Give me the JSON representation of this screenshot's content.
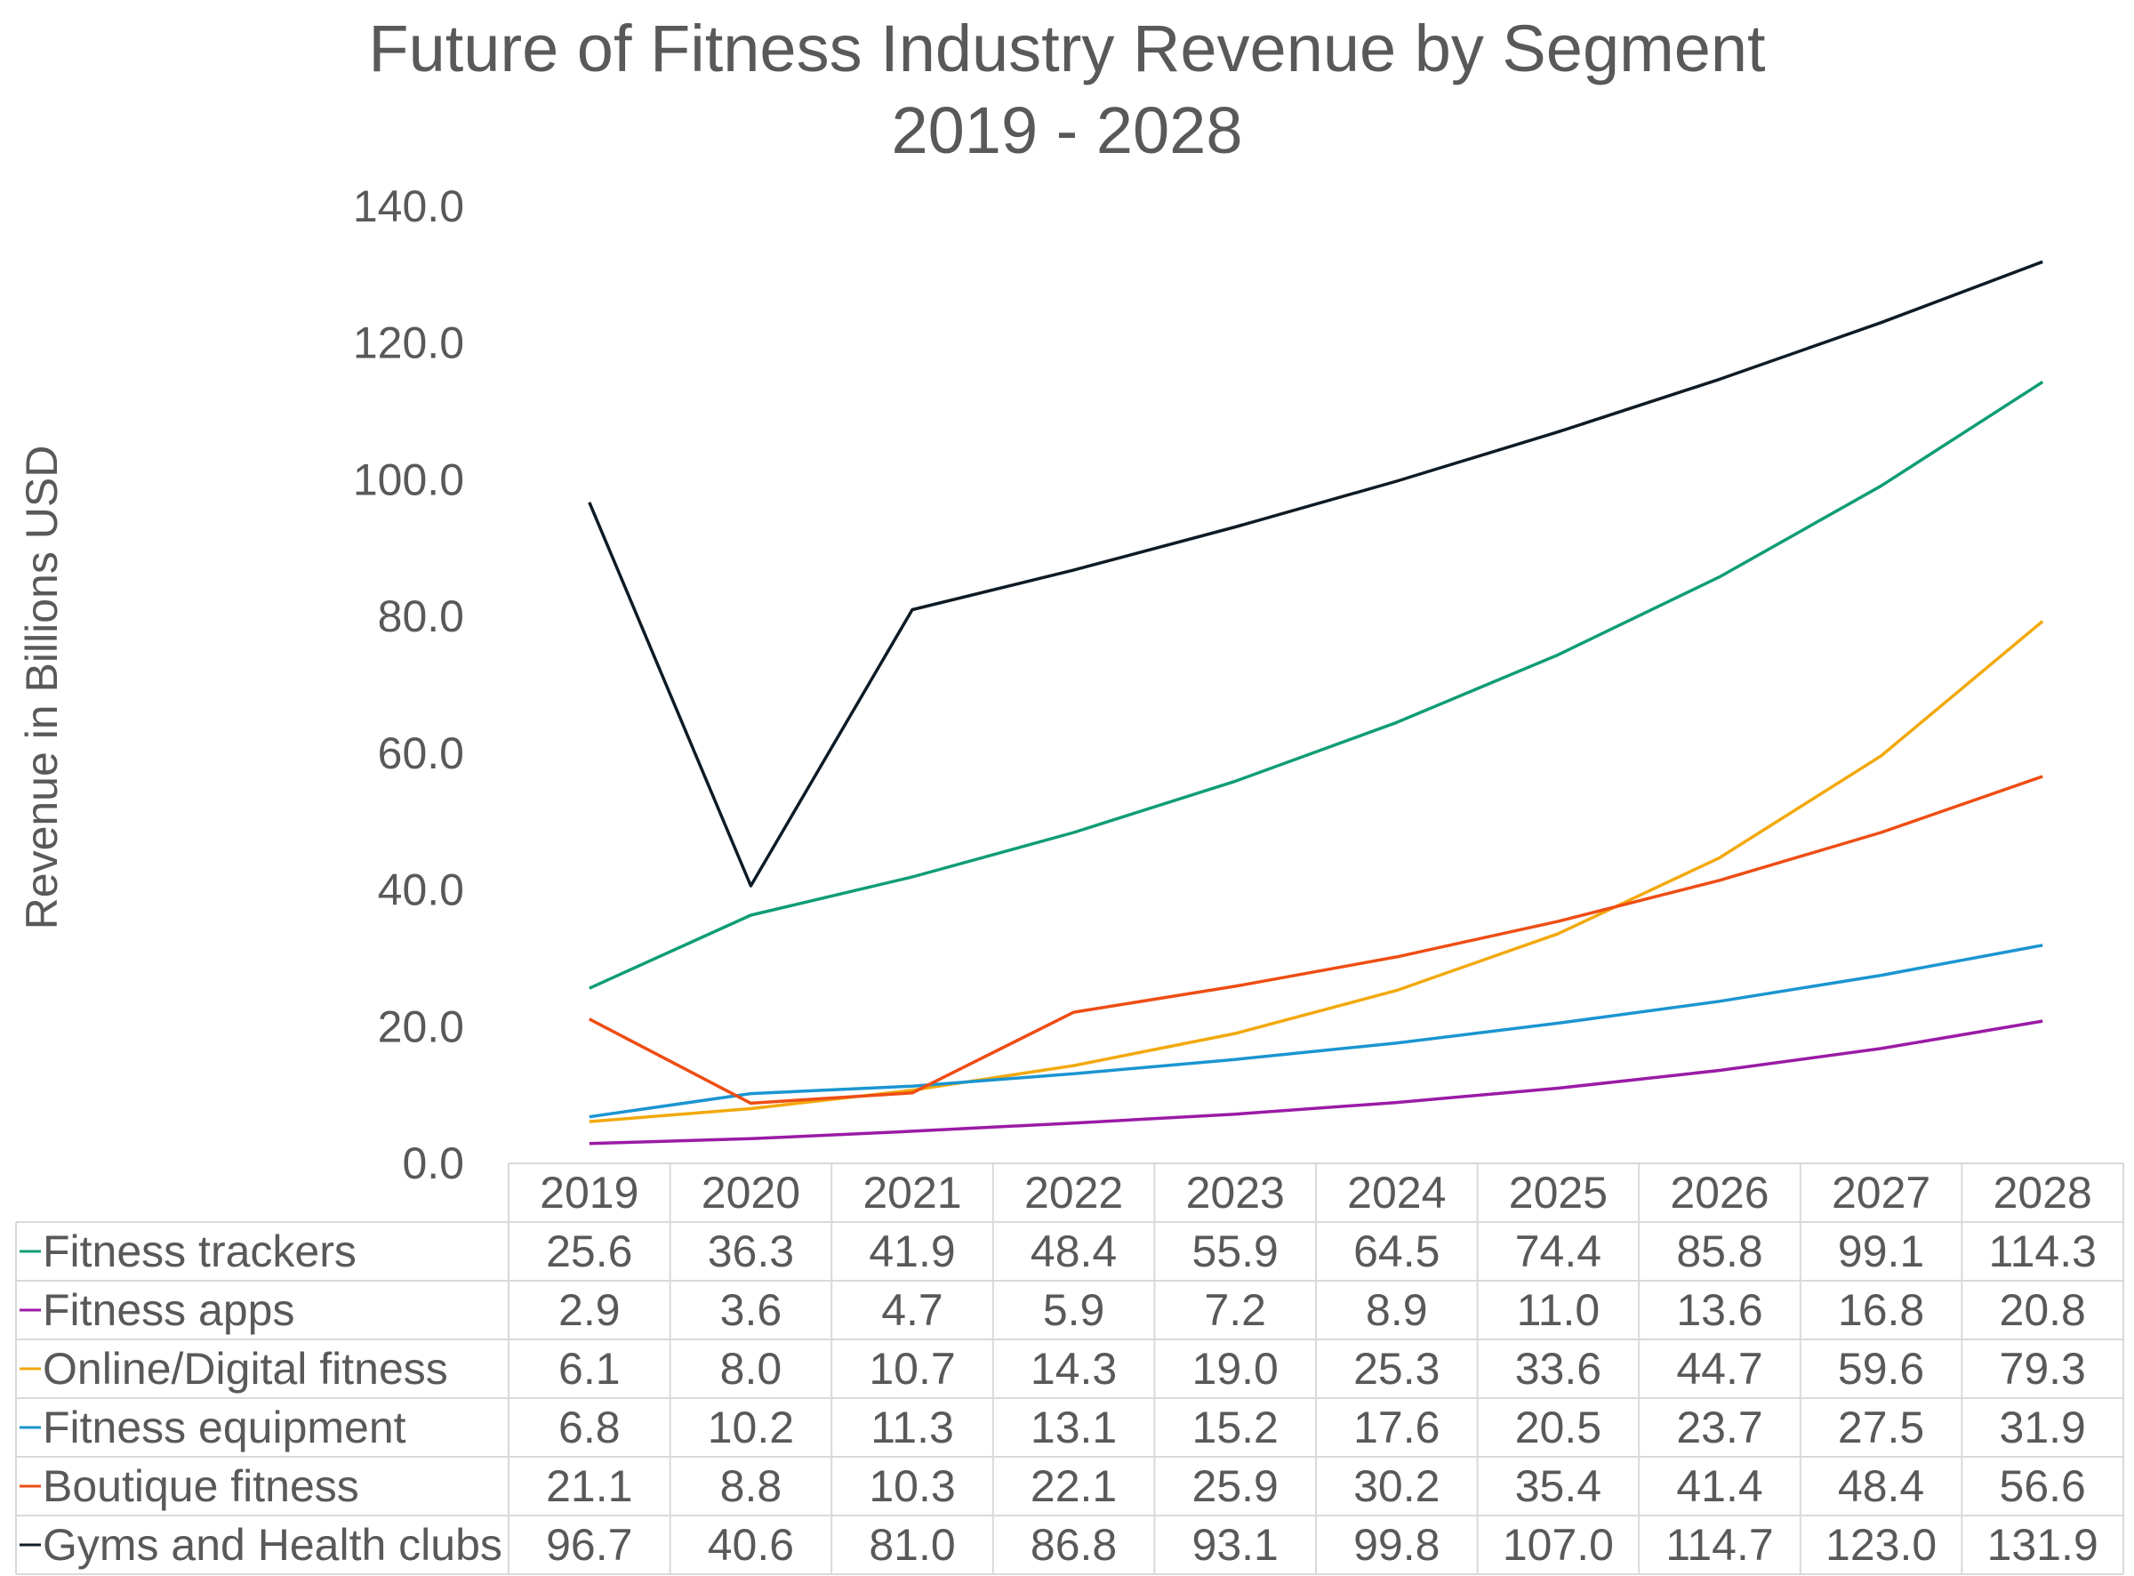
{
  "chart_data": {
    "type": "line",
    "title": "Future of Fitness Industry Revenue by Segment",
    "subtitle": "2019 - 2028",
    "ylabel": "Revenue in Billions USD",
    "xlabel": "",
    "ylim": [
      0,
      140
    ],
    "yticks": [
      "0.0",
      "20.0",
      "40.0",
      "60.0",
      "80.0",
      "100.0",
      "120.0",
      "140.0"
    ],
    "yticks_values": [
      0,
      20,
      40,
      60,
      80,
      100,
      120,
      140
    ],
    "grid": false,
    "legend": "data-table",
    "categories": [
      "2019",
      "2020",
      "2021",
      "2022",
      "2023",
      "2024",
      "2025",
      "2026",
      "2027",
      "2028"
    ],
    "series": [
      {
        "name": "Fitness trackers",
        "color": "#0f9d75",
        "values": [
          25.6,
          36.3,
          41.9,
          48.4,
          55.9,
          64.5,
          74.4,
          85.8,
          99.1,
          114.3
        ],
        "labels": [
          "25.6",
          "36.3",
          "41.9",
          "48.4",
          "55.9",
          "64.5",
          "74.4",
          "85.8",
          "99.1",
          "114.3"
        ]
      },
      {
        "name": "Fitness apps",
        "color": "#9b1aa6",
        "values": [
          2.9,
          3.6,
          4.7,
          5.9,
          7.2,
          8.9,
          11.0,
          13.6,
          16.8,
          20.8
        ],
        "labels": [
          "2.9",
          "3.6",
          "4.7",
          "5.9",
          "7.2",
          "8.9",
          "11.0",
          "13.6",
          "16.8",
          "20.8"
        ]
      },
      {
        "name": "Online/Digital fitness",
        "color": "#f2a90d",
        "values": [
          6.1,
          8.0,
          10.7,
          14.3,
          19.0,
          25.3,
          33.6,
          44.7,
          59.6,
          79.3
        ],
        "labels": [
          "6.1",
          "8.0",
          "10.7",
          "14.3",
          "19.0",
          "25.3",
          "33.6",
          "44.7",
          "59.6",
          "79.3"
        ]
      },
      {
        "name": "Fitness equipment",
        "color": "#1b95d1",
        "values": [
          6.8,
          10.2,
          11.3,
          13.1,
          15.2,
          17.6,
          20.5,
          23.7,
          27.5,
          31.9
        ],
        "labels": [
          "6.8",
          "10.2",
          "11.3",
          "13.1",
          "15.2",
          "17.6",
          "20.5",
          "23.7",
          "27.5",
          "31.9"
        ]
      },
      {
        "name": "Boutique fitness",
        "color": "#ee4d14",
        "values": [
          21.1,
          8.8,
          10.3,
          22.1,
          25.9,
          30.2,
          35.4,
          41.4,
          48.4,
          56.6
        ],
        "labels": [
          "21.1",
          "8.8",
          "10.3",
          "22.1",
          "25.9",
          "30.2",
          "35.4",
          "41.4",
          "48.4",
          "56.6"
        ]
      },
      {
        "name": "Gyms and Health clubs",
        "color": "#0d1b26",
        "values": [
          96.7,
          40.6,
          81.0,
          86.8,
          93.1,
          99.8,
          107.0,
          114.7,
          123.0,
          131.9
        ],
        "labels": [
          "96.7",
          "40.6",
          "81.0",
          "86.8",
          "93.1",
          "99.8",
          "107.0",
          "114.7",
          "123.0",
          "131.9"
        ]
      }
    ]
  }
}
